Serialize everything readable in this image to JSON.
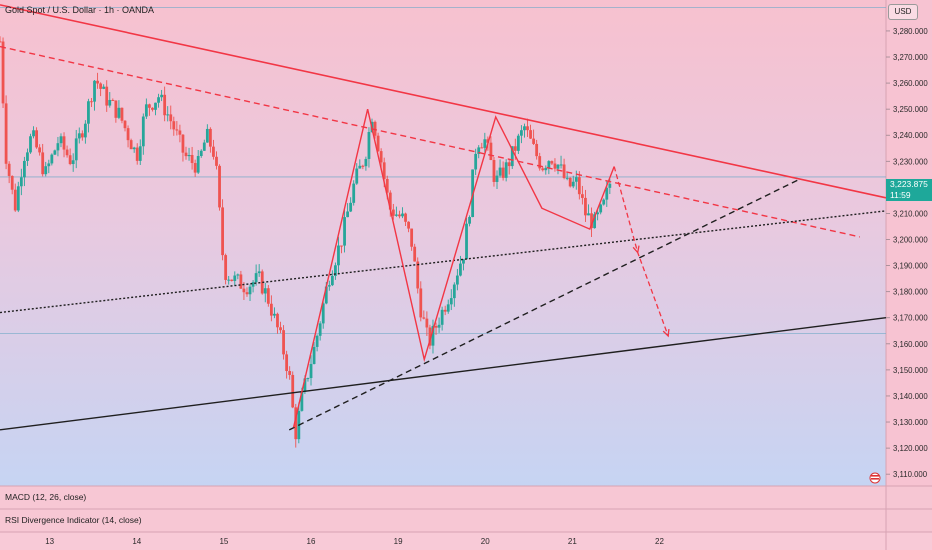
{
  "header": {
    "title": "Gold Spot / U.S. Dollar · 1h · OANDA",
    "currency": "USD"
  },
  "panes": {
    "macd_label": "MACD (12, 26, close)",
    "rsi_label": "RSI Divergence Indicator (14, close)"
  },
  "price_badge": {
    "price": "3,223.875",
    "countdown": "11:59"
  },
  "colors": {
    "bull": "#26a69a",
    "bear": "#ef5350",
    "trend_red": "#f23645",
    "black_line": "#1f1f1f",
    "badge": "#1ea89a"
  },
  "chart_data": {
    "type": "candlestick",
    "title": "Gold Spot / U.S. Dollar · 1h · OANDA",
    "ylim": [
      3110,
      3290
    ],
    "y_ticks": [
      3280,
      3270,
      3260,
      3250,
      3240,
      3230,
      3210,
      3200,
      3190,
      3180,
      3170,
      3160,
      3150,
      3140,
      3130,
      3120,
      3110
    ],
    "y_tick_labels": [
      "3,280.000",
      "3,270.000",
      "3,260.000",
      "3,250.000",
      "3,240.000",
      "3,230.000",
      "3,210.000",
      "3,200.000",
      "3,190.000",
      "3,180.000",
      "3,170.000",
      "3,160.000",
      "3,150.000",
      "3,140.000",
      "3,130.000",
      "3,120.000",
      "3,110.000"
    ],
    "x_labels": [
      {
        "label": "13",
        "t": 3.3
      },
      {
        "label": "14",
        "t": 4.3
      },
      {
        "label": "15",
        "t": 5.3
      },
      {
        "label": "16",
        "t": 6.3
      },
      {
        "label": "19",
        "t": 7.3
      },
      {
        "label": "20",
        "t": 8.3
      },
      {
        "label": "21",
        "t": 9.3
      },
      {
        "label": "22",
        "t": 10.3
      }
    ],
    "candle_anchors": [
      {
        "t": 2.73,
        "p": 3276
      },
      {
        "t": 2.8,
        "p": 3232
      },
      {
        "t": 2.9,
        "p": 3212
      },
      {
        "t": 3.0,
        "p": 3232
      },
      {
        "t": 3.1,
        "p": 3240
      },
      {
        "t": 3.25,
        "p": 3225
      },
      {
        "t": 3.4,
        "p": 3238
      },
      {
        "t": 3.55,
        "p": 3230
      },
      {
        "t": 3.7,
        "p": 3245
      },
      {
        "t": 3.82,
        "p": 3262
      },
      {
        "t": 3.95,
        "p": 3254
      },
      {
        "t": 4.1,
        "p": 3248
      },
      {
        "t": 4.3,
        "p": 3232
      },
      {
        "t": 4.4,
        "p": 3250
      },
      {
        "t": 4.55,
        "p": 3255
      },
      {
        "t": 4.7,
        "p": 3245
      },
      {
        "t": 4.85,
        "p": 3232
      },
      {
        "t": 5.0,
        "p": 3228
      },
      {
        "t": 5.1,
        "p": 3240
      },
      {
        "t": 5.2,
        "p": 3232
      },
      {
        "t": 5.3,
        "p": 3188
      },
      {
        "t": 5.4,
        "p": 3185
      },
      {
        "t": 5.55,
        "p": 3182
      },
      {
        "t": 5.7,
        "p": 3185
      },
      {
        "t": 5.8,
        "p": 3178
      },
      {
        "t": 5.95,
        "p": 3162
      },
      {
        "t": 6.05,
        "p": 3148
      },
      {
        "t": 6.12,
        "p": 3125
      },
      {
        "t": 6.2,
        "p": 3140
      },
      {
        "t": 6.35,
        "p": 3160
      },
      {
        "t": 6.5,
        "p": 3185
      },
      {
        "t": 6.65,
        "p": 3200
      },
      {
        "t": 6.8,
        "p": 3222
      },
      {
        "t": 6.92,
        "p": 3232
      },
      {
        "t": 7.0,
        "p": 3248
      },
      {
        "t": 7.08,
        "p": 3235
      },
      {
        "t": 7.2,
        "p": 3212
      },
      {
        "t": 7.35,
        "p": 3208
      },
      {
        "t": 7.45,
        "p": 3200
      },
      {
        "t": 7.55,
        "p": 3175
      },
      {
        "t": 7.65,
        "p": 3160
      },
      {
        "t": 7.75,
        "p": 3168
      },
      {
        "t": 7.9,
        "p": 3180
      },
      {
        "t": 8.05,
        "p": 3195
      },
      {
        "t": 8.12,
        "p": 3212
      },
      {
        "t": 8.2,
        "p": 3238
      },
      {
        "t": 8.3,
        "p": 3238
      },
      {
        "t": 8.42,
        "p": 3222
      },
      {
        "t": 8.55,
        "p": 3228
      },
      {
        "t": 8.68,
        "p": 3238
      },
      {
        "t": 8.75,
        "p": 3243
      },
      {
        "t": 8.85,
        "p": 3235
      },
      {
        "t": 8.95,
        "p": 3228
      },
      {
        "t": 9.05,
        "p": 3232
      },
      {
        "t": 9.15,
        "p": 3228
      },
      {
        "t": 9.25,
        "p": 3220
      },
      {
        "t": 9.35,
        "p": 3222
      },
      {
        "t": 9.45,
        "p": 3210
      },
      {
        "t": 9.55,
        "p": 3206
      },
      {
        "t": 9.65,
        "p": 3212
      },
      {
        "t": 9.75,
        "p": 3224
      }
    ],
    "lines": [
      {
        "name": "upper-trendline",
        "color": "#f23645",
        "style": "solid",
        "from": {
          "t": 2.73,
          "p": 3290
        },
        "to": {
          "t": 12.9,
          "p": 3216
        }
      },
      {
        "name": "mid-dashed-trendline",
        "color": "#f23645",
        "style": "dashed",
        "from": {
          "t": 2.73,
          "p": 3274
        },
        "to": {
          "t": 12.6,
          "p": 3201
        }
      },
      {
        "name": "dotted-support-line",
        "color": "#1f1f1f",
        "style": "dotted",
        "from": {
          "t": 2.73,
          "p": 3172
        },
        "to": {
          "t": 12.9,
          "p": 3211
        }
      },
      {
        "name": "lower-support-line",
        "color": "#1f1f1f",
        "style": "solid",
        "from": {
          "t": 2.73,
          "p": 3127
        },
        "to": {
          "t": 12.9,
          "p": 3170
        }
      },
      {
        "name": "rising-dashed-line",
        "color": "#1f1f1f",
        "style": "dashed",
        "from": {
          "t": 6.05,
          "p": 3127
        },
        "to": {
          "t": 11.9,
          "p": 3223
        }
      }
    ],
    "zigzag": [
      {
        "t": 6.1,
        "p": 3128
      },
      {
        "t": 6.95,
        "p": 3250
      },
      {
        "t": 7.6,
        "p": 3154
      },
      {
        "t": 8.42,
        "p": 3247
      },
      {
        "t": 8.95,
        "p": 3212
      },
      {
        "t": 9.5,
        "p": 3204
      },
      {
        "t": 9.78,
        "p": 3228
      }
    ],
    "projection": [
      {
        "t": 9.78,
        "p": 3228
      },
      {
        "t": 10.05,
        "p": 3195
      },
      {
        "t": 10.4,
        "p": 3163
      }
    ],
    "h_levels": [
      {
        "name": "current-price-level",
        "p": 3224,
        "color": "#6fa9c8"
      },
      {
        "name": "support-level",
        "p": 3164,
        "color": "#6fa9c8"
      },
      {
        "name": "top-level",
        "p": 3289,
        "color": "#6fa9c8"
      }
    ]
  }
}
